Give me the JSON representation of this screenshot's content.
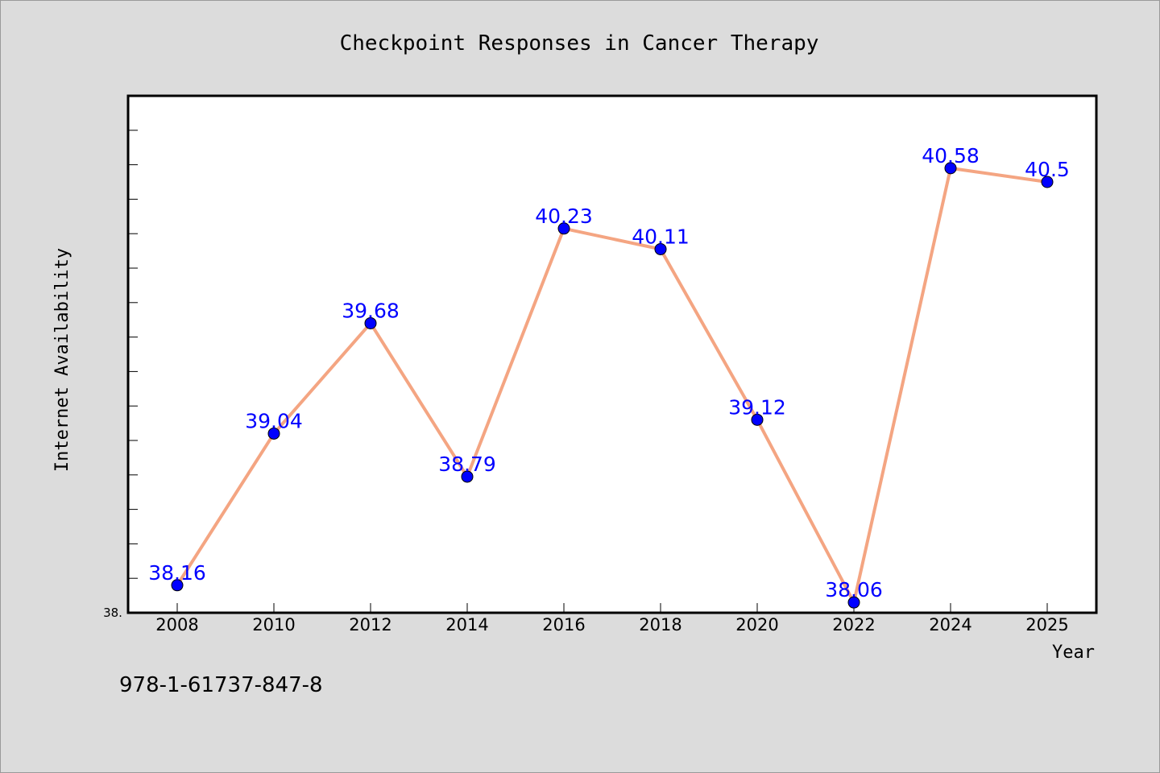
{
  "chart_data": {
    "type": "line",
    "title": "Checkpoint Responses in Cancer Therapy",
    "xlabel": "Year",
    "ylabel": "Internet Availability",
    "categories": [
      "2008",
      "2010",
      "2012",
      "2014",
      "2016",
      "2018",
      "2020",
      "2022",
      "2024",
      "2025"
    ],
    "series": [
      {
        "values": [
          38.16,
          39.04,
          39.68,
          38.79,
          40.23,
          40.11,
          39.12,
          38.06,
          40.58,
          40.5
        ],
        "data_labels": [
          "38.16",
          "39.04",
          "39.68",
          "38.79",
          "40.23",
          "40.11",
          "39.12",
          "38.06",
          "40.58",
          "40.5"
        ]
      }
    ],
    "ylim": [
      38.0,
      41.0
    ],
    "ytick_label": "38.",
    "minor_ticks": true,
    "grid": false,
    "legend": "none",
    "colors": {
      "line": "#f4a582",
      "marker": "#0000ff",
      "data_label": "#0000ff",
      "background": "#dcdcdc",
      "plot_area": "#ffffff"
    }
  },
  "footer": {
    "isbn": "978-1-61737-847-8"
  }
}
